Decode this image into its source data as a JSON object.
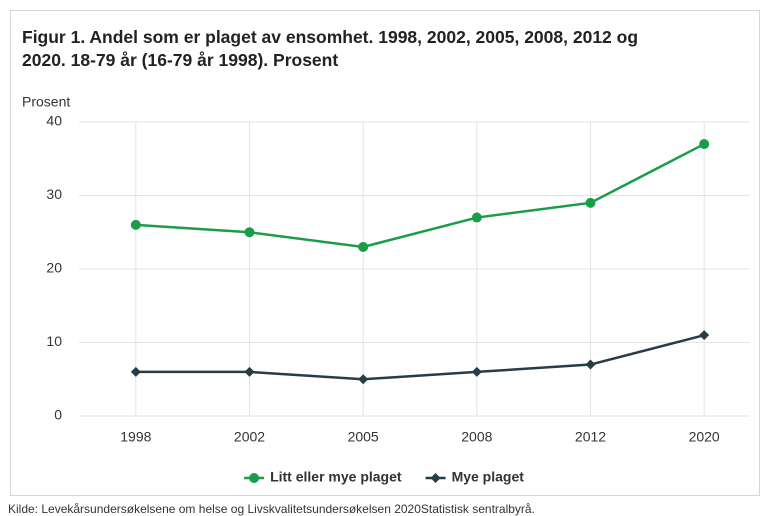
{
  "chart_data": {
    "type": "line",
    "title": "Figur 1. Andel som er plaget av ensomhet. 1998, 2002, 2005, 2008, 2012 og 2020. 18-79 år (16-79 år 1998). Prosent",
    "y_label": "Prosent",
    "categories": [
      "1998",
      "2002",
      "2005",
      "2008",
      "2012",
      "2020"
    ],
    "series": [
      {
        "name": "Litt eller mye plaget",
        "color": "#1a9d49",
        "marker": "circle",
        "values": [
          26,
          25,
          23,
          27,
          29,
          37
        ]
      },
      {
        "name": "Mye plaget",
        "color": "#273c49",
        "marker": "diamond",
        "values": [
          6,
          6,
          5,
          6,
          7,
          11
        ]
      }
    ],
    "ylim": [
      0,
      40
    ],
    "yticks": [
      0,
      10,
      20,
      30,
      40
    ],
    "grid": true,
    "legend": "bottom",
    "source": "Kilde: Levekårsundersøkelsene om helse og Livskvalitetsundersøkelsen 2020Statistisk sentralbyrå."
  }
}
